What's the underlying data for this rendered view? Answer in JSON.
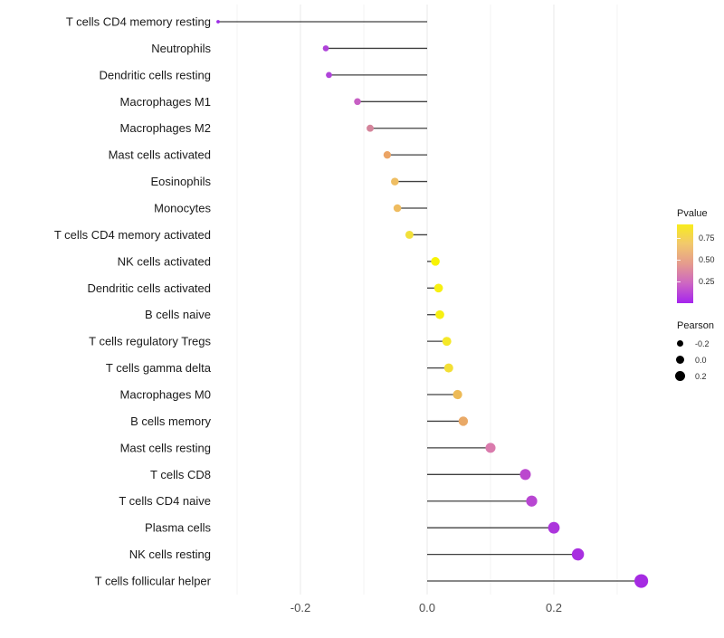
{
  "chart_data": {
    "type": "lollipop",
    "orientation": "horizontal",
    "title": "",
    "xlabel": "",
    "ylabel": "",
    "xlim": [
      -0.345,
      0.46
    ],
    "x_ticks_major": [
      -0.2,
      0.0,
      0.2
    ],
    "x_tick_labels": [
      "-0.2",
      "0.0",
      "0.2"
    ],
    "x_ticks_minor": [
      -0.3,
      -0.1,
      0.1,
      0.3
    ],
    "grid": "vertical major+minor light gray on white, no axis lines",
    "size_encoding": "Pearson value",
    "color_encoding": "Pvalue, gradient purple(low) to yellow(high)",
    "rows": [
      {
        "label": "T cells CD4 memory resting",
        "pearson": -0.33,
        "pvalue_color": "#9C2BE5"
      },
      {
        "label": "Neutrophils",
        "pearson": -0.16,
        "pvalue_color": "#AF42D9"
      },
      {
        "label": "Dendritic cells resting",
        "pearson": -0.155,
        "pvalue_color": "#B044DA"
      },
      {
        "label": "Macrophages M1",
        "pearson": -0.11,
        "pvalue_color": "#C75FC4"
      },
      {
        "label": "Macrophages M2",
        "pearson": -0.09,
        "pvalue_color": "#D4849B"
      },
      {
        "label": "Mast cells activated",
        "pearson": -0.063,
        "pvalue_color": "#EBA465"
      },
      {
        "label": "Eosinophils",
        "pearson": -0.051,
        "pvalue_color": "#EFBE63"
      },
      {
        "label": "Monocytes",
        "pearson": -0.047,
        "pvalue_color": "#EFBC60"
      },
      {
        "label": "T cells CD4 memory activated",
        "pearson": -0.028,
        "pvalue_color": "#F2E03A"
      },
      {
        "label": "NK cells activated",
        "pearson": 0.013,
        "pvalue_color": "#F8F303"
      },
      {
        "label": "Dendritic cells activated",
        "pearson": 0.018,
        "pvalue_color": "#F7F011"
      },
      {
        "label": "B cells naive",
        "pearson": 0.02,
        "pvalue_color": "#F7F011"
      },
      {
        "label": "T cells regulatory  Tregs",
        "pearson": 0.031,
        "pvalue_color": "#F5E828"
      },
      {
        "label": "T cells gamma delta",
        "pearson": 0.034,
        "pvalue_color": "#F3DF35"
      },
      {
        "label": "Macrophages M0",
        "pearson": 0.048,
        "pvalue_color": "#EDBA57"
      },
      {
        "label": "B cells memory",
        "pearson": 0.057,
        "pvalue_color": "#E9A967"
      },
      {
        "label": "Mast cells resting",
        "pearson": 0.1,
        "pvalue_color": "#DA7BAD"
      },
      {
        "label": "T cells CD8",
        "pearson": 0.155,
        "pvalue_color": "#BB48CE"
      },
      {
        "label": "T cells CD4 naive",
        "pearson": 0.165,
        "pvalue_color": "#B846D2"
      },
      {
        "label": "Plasma cells",
        "pearson": 0.2,
        "pvalue_color": "#AC35DC"
      },
      {
        "label": "NK cells resting",
        "pearson": 0.238,
        "pvalue_color": "#A82FE0"
      },
      {
        "label": "T cells follicular helper",
        "pearson": 0.338,
        "pvalue_color": "#A52BE2"
      }
    ],
    "legend_position": "right",
    "legends": {
      "pvalue": {
        "title": "Pvalue",
        "tick_values": [
          0.75,
          0.5,
          0.25
        ],
        "tick_labels": [
          "0.75",
          "0.50",
          "0.25"
        ],
        "bar_range": [
          0,
          0.91
        ],
        "gradient_high_color": "#F8EC1C",
        "gradient_mid_color": "#E59B8E",
        "gradient_low_color": "#A524EE"
      },
      "pearson": {
        "title": "Pearson",
        "items": [
          {
            "label": "-0.2",
            "diameter": 7
          },
          {
            "label": "0.0",
            "diameter": 9
          },
          {
            "label": "0.2",
            "diameter": 11
          }
        ]
      }
    },
    "style": {
      "stick_color": "#404040",
      "grid_major_color": "#E8E8E8",
      "grid_minor_color": "#F3F3F3",
      "y_label_color": "#1a1a1a",
      "x_tick_color": "#4d4d4d"
    }
  }
}
